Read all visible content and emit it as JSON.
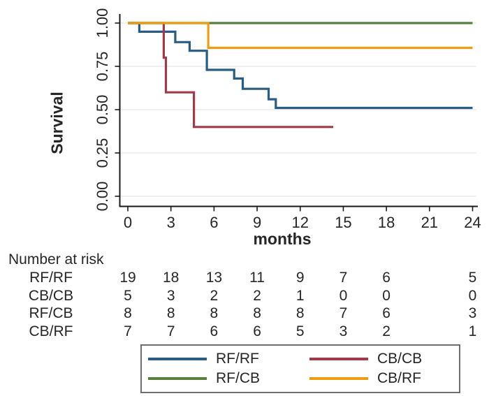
{
  "chart_data": {
    "type": "line",
    "subtype": "kaplan-meier-step-survival",
    "title": "",
    "xlabel": "months",
    "ylabel": "Survival",
    "xlim": [
      0,
      24
    ],
    "ylim": [
      0.0,
      1.0
    ],
    "xtick_labels": [
      "0",
      "3",
      "6",
      "9",
      "12",
      "15",
      "18",
      "21",
      "24"
    ],
    "xtick_values": [
      0,
      3,
      6,
      9,
      12,
      15,
      18,
      21,
      24
    ],
    "ytick_labels": [
      "0.00",
      "0.25",
      "0.50",
      "0.75",
      "1.00"
    ],
    "ytick_values": [
      0.0,
      0.25,
      0.5,
      0.75,
      1.0
    ],
    "grid": "horizontal-light",
    "gridline_color": "#e8e8e8",
    "axis_color": "#1a1a1a",
    "series": [
      {
        "name": "RF/RF",
        "color": "#2a5d84",
        "end_month": 24,
        "steps": [
          [
            0,
            1.0
          ],
          [
            0.8,
            0.95
          ],
          [
            3.3,
            0.89
          ],
          [
            4.3,
            0.84
          ],
          [
            5.5,
            0.73
          ],
          [
            7.4,
            0.68
          ],
          [
            8.0,
            0.62
          ],
          [
            9.8,
            0.56
          ],
          [
            10.3,
            0.51
          ]
        ]
      },
      {
        "name": "CB/CB",
        "color": "#9e3c4b",
        "end_month": 14.3,
        "steps": [
          [
            0,
            1.0
          ],
          [
            2.5,
            0.8
          ],
          [
            2.65,
            0.6
          ],
          [
            4.6,
            0.4
          ]
        ]
      },
      {
        "name": "RF/CB",
        "color": "#577f3b",
        "end_month": 24,
        "steps": [
          [
            0,
            1.0
          ]
        ]
      },
      {
        "name": "CB/RF",
        "color": "#ee9c10",
        "end_month": 24,
        "steps": [
          [
            0,
            1.0
          ],
          [
            5.6,
            0.857
          ]
        ]
      }
    ],
    "at_risk": {
      "header": "Number at risk",
      "columns_months": [
        0,
        3,
        6,
        9,
        12,
        15,
        18,
        21,
        24
      ],
      "rows": [
        {
          "label": "RF/RF",
          "counts": [
            "19",
            "18",
            "13",
            "11",
            "9",
            "7",
            "6",
            "",
            "5"
          ]
        },
        {
          "label": "CB/CB",
          "counts": [
            "5",
            "3",
            "2",
            "2",
            "1",
            "0",
            "0",
            "",
            "0"
          ]
        },
        {
          "label": "RF/CB",
          "counts": [
            "8",
            "8",
            "8",
            "8",
            "8",
            "7",
            "6",
            "",
            "3"
          ]
        },
        {
          "label": "CB/RF",
          "counts": [
            "7",
            "7",
            "6",
            "6",
            "5",
            "3",
            "2",
            "",
            "1"
          ]
        }
      ]
    },
    "legend": {
      "position": "bottom-boxed",
      "border_color": "#6e6e6e",
      "order": [
        "RF/RF",
        "CB/CB",
        "RF/CB",
        "CB/RF"
      ]
    }
  }
}
